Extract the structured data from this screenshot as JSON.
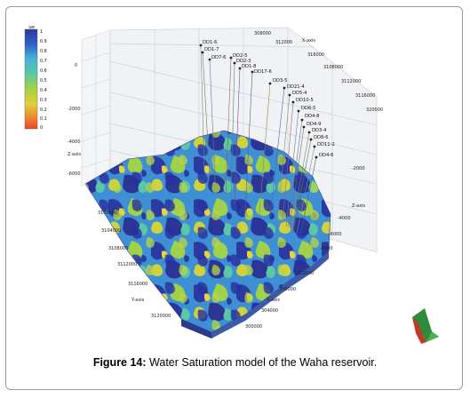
{
  "caption": {
    "label": "Figure 14:",
    "text": " Water Saturation model of the Waha reservoir."
  },
  "colorbar": {
    "title": "Sw",
    "ticks": [
      "1",
      "0.9",
      "0.8",
      "0.7",
      "0.6",
      "0.5",
      "0.4",
      "0.3",
      "0.2",
      "0.1",
      "0"
    ],
    "colors": [
      "#2b3a9e",
      "#2f63c4",
      "#3c8fd6",
      "#49b3d6",
      "#5cc7a6",
      "#7ccd6a",
      "#a6d240",
      "#cfd23a",
      "#e8c43a",
      "#f08a30",
      "#e8452a"
    ]
  },
  "axes": {
    "x_axis": "X-axis",
    "y_axis": "Y-axis",
    "z_axis": "Z-axis",
    "x_ticks_back": [
      "308000",
      "312000",
      "316000",
      "320000"
    ],
    "y_ticks_right": [
      "3108000",
      "3112000",
      "3116000"
    ],
    "z_ticks_left": [
      "0",
      "-2000",
      "-4000",
      "-6000"
    ],
    "z_ticks_right": [
      "-2000",
      "-4000",
      "-6000",
      "-8000"
    ],
    "y_ticks_front": [
      "3100000",
      "3104000",
      "3108000",
      "3112000",
      "3116000",
      "3120000"
    ],
    "x_ticks_front": [
      "312000",
      "308000",
      "304000",
      "300000"
    ]
  },
  "wells": [
    "DD1-6",
    "DD1-7",
    "DD7-6",
    "DD2-5",
    "DD2-3",
    "DD1-8",
    "DD17-6",
    "DD3-5",
    "DD21-4",
    "DD5-4",
    "DD10-5",
    "DD6-5",
    "DD4-8",
    "DD4-9",
    "DD3-4",
    "DD8-6",
    "DD11-2",
    "DD4-6",
    "DD11-2"
  ]
}
